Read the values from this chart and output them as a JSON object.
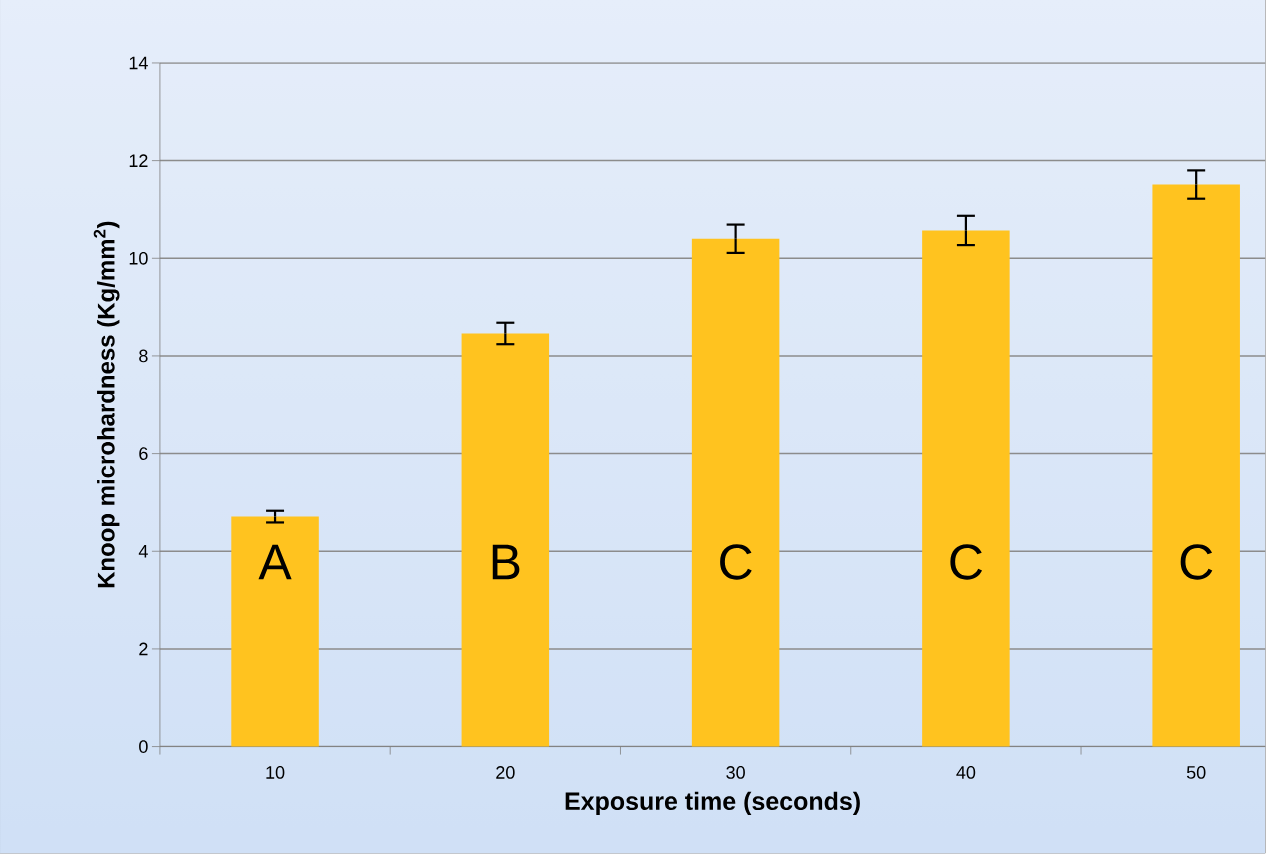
{
  "chart_data": {
    "type": "bar",
    "xlabel": "Exposure time (seconds)",
    "ylabel": "Knoop microhardness (Kg/mm$^{2}$)",
    "categories": [
      "10",
      "20",
      "30",
      "40",
      "50"
    ],
    "values": [
      4.71,
      8.46,
      10.4,
      10.57,
      11.51
    ],
    "errors": [
      0.12,
      0.22,
      0.29,
      0.3,
      0.29
    ],
    "color": "#ffc31f",
    "ylim": [
      0,
      14
    ],
    "yticks": [
      0,
      2,
      4,
      6,
      8,
      10,
      12,
      14
    ],
    "grid": "y",
    "annotations": [
      "A",
      "B",
      "C",
      "C",
      "C"
    ]
  }
}
